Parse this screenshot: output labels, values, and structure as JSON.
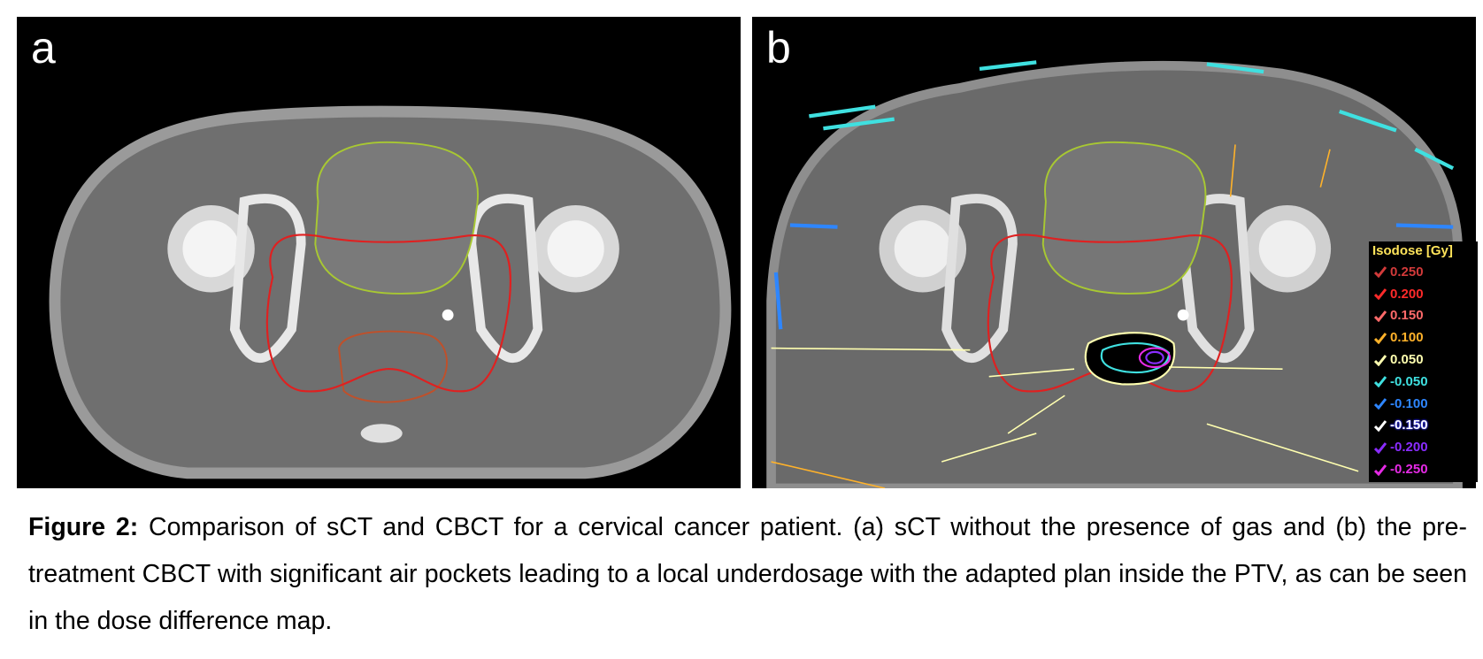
{
  "panels": [
    {
      "label": "a"
    },
    {
      "label": "b"
    }
  ],
  "legend": {
    "title": "Isodose [Gy]",
    "items": [
      {
        "label": "0.250",
        "color": "#d23a3a"
      },
      {
        "label": "0.200",
        "color": "#ff2a2a"
      },
      {
        "label": "0.150",
        "color": "#ff6a6a"
      },
      {
        "label": "0.100",
        "color": "#ffb22a"
      },
      {
        "label": "0.050",
        "color": "#ffffb0"
      },
      {
        "label": "-0.050",
        "color": "#3fe0e0"
      },
      {
        "label": "-0.100",
        "color": "#2e86ff"
      },
      {
        "label": "-0.150",
        "color": "#ffffff"
      },
      {
        "label": "-0.200",
        "color": "#8a2cff"
      },
      {
        "label": "-0.250",
        "color": "#e62ae6"
      }
    ]
  },
  "caption": {
    "label": "Figure 2:",
    "text": "Comparison of sCT and CBCT for a cervical cancer patient. (a) sCT without the presence of gas and (b) the pre-treatment CBCT with significant air pockets leading to a local underdosage with the adapted plan inside the PTV, as can be seen in the dose difference map."
  }
}
